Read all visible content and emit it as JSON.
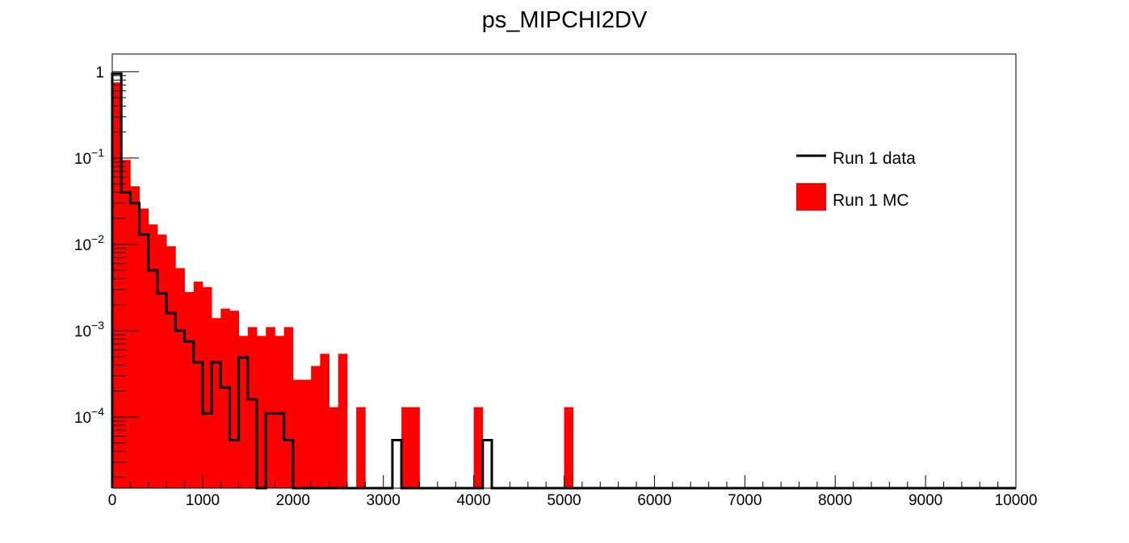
{
  "chart_data": {
    "type": "histogram",
    "title": "ps_MIPCHI2DV",
    "xlabel": "",
    "ylabel": "",
    "xlim": [
      0,
      10000
    ],
    "ylim": [
      1.5e-05,
      1.6
    ],
    "yscale": "log",
    "grid": false,
    "bin_width": 100,
    "xticks": [
      "0",
      "1000",
      "2000",
      "3000",
      "4000",
      "5000",
      "6000",
      "7000",
      "8000",
      "9000",
      "10000"
    ],
    "yticks": [
      {
        "value": 1,
        "base": "1",
        "exp": ""
      },
      {
        "value": 0.1,
        "base": "10",
        "exp": "−1"
      },
      {
        "value": 0.01,
        "base": "10",
        "exp": "−2"
      },
      {
        "value": 0.001,
        "base": "10",
        "exp": "−3"
      },
      {
        "value": 0.0001,
        "base": "10",
        "exp": "−4"
      }
    ],
    "legend_position": "top-right",
    "series": [
      {
        "name": "Run 1 MC",
        "style": "filled",
        "color": "#ff0000",
        "bin_starts": [
          0,
          100,
          200,
          300,
          400,
          500,
          600,
          700,
          800,
          900,
          1000,
          1100,
          1200,
          1300,
          1400,
          1500,
          1600,
          1700,
          1800,
          1900,
          2000,
          2100,
          2200,
          2300,
          2400,
          2500,
          2700,
          3200,
          3300,
          4000,
          5000
        ],
        "values": [
          0.75,
          0.095,
          0.047,
          0.026,
          0.017,
          0.013,
          0.0095,
          0.0053,
          0.0028,
          0.0037,
          0.0032,
          0.0014,
          0.0018,
          0.0017,
          0.00087,
          0.0011,
          0.00087,
          0.0011,
          0.00087,
          0.0011,
          0.00027,
          0.00027,
          0.00039,
          0.00054,
          0.00013,
          0.00054,
          0.00013,
          0.00013,
          0.00013,
          0.00013,
          0.00013
        ]
      },
      {
        "name": "Run 1 data",
        "style": "line",
        "color": "#000000",
        "bin_starts": [
          0,
          100,
          200,
          300,
          400,
          500,
          600,
          700,
          800,
          900,
          1000,
          1100,
          1200,
          1300,
          1400,
          1500,
          1600,
          1700,
          1800,
          1900,
          2000,
          3100,
          3200,
          4100,
          4200
        ],
        "values": [
          0.95,
          0.04,
          0.03,
          0.013,
          0.005,
          0.0027,
          0.0016,
          0.001,
          0.00075,
          0.00043,
          0.00011,
          0.00043,
          0.00022,
          5.4e-05,
          0.00049,
          0.00016,
          1.5e-05,
          0.00011,
          0.00011,
          5.4e-05,
          1.5e-05,
          5.4e-05,
          1.5e-05,
          5.4e-05,
          1.5e-05
        ]
      }
    ]
  }
}
